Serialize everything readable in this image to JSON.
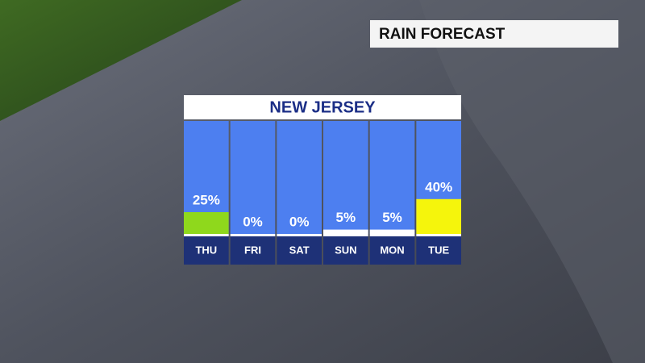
{
  "chart_data": {
    "type": "bar",
    "heading": "RAIN FORECAST",
    "title": "NEW JERSEY",
    "categories": [
      "THU",
      "FRI",
      "SAT",
      "SUN",
      "MON",
      "TUE"
    ],
    "values": [
      25,
      0,
      0,
      5,
      5,
      40
    ],
    "value_labels": [
      "25%",
      "0%",
      "0%",
      "5%",
      "5%",
      "40%"
    ],
    "colors": [
      "#8fd81c",
      "#ffffff",
      "#ffffff",
      "#ffffff",
      "#ffffff",
      "#f5f50c"
    ]
  }
}
